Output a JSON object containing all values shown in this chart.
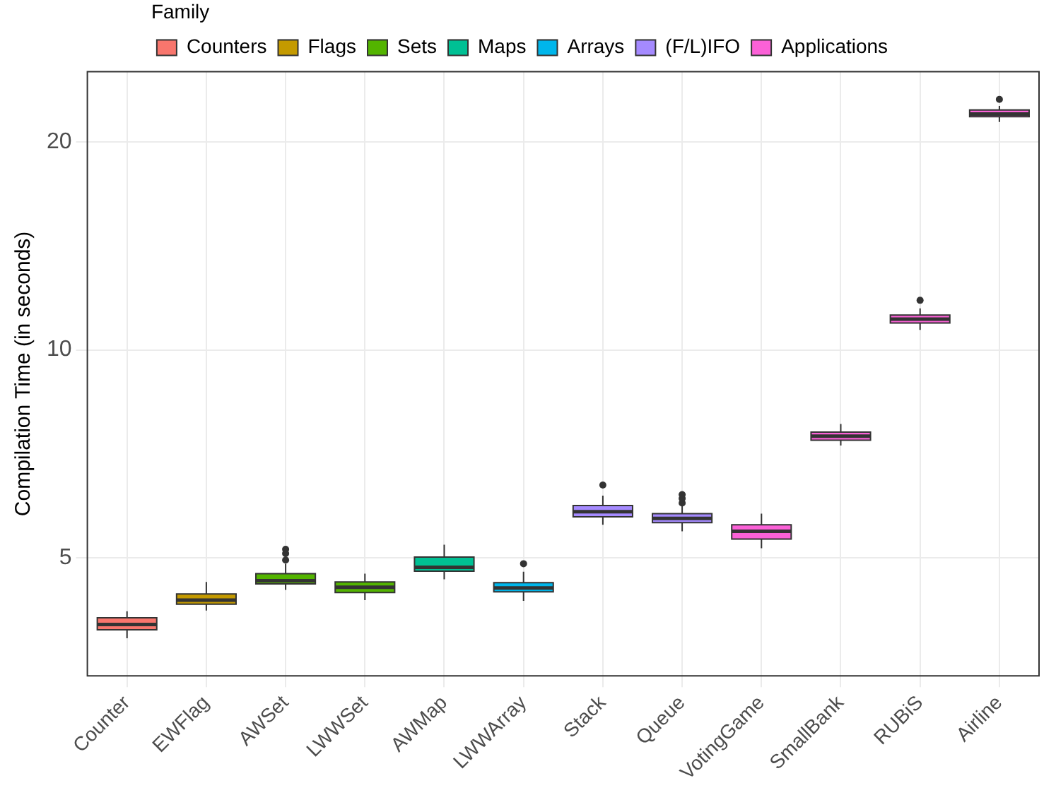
{
  "chart_data": {
    "type": "box",
    "ylabel": "Compilation Time (in seconds)",
    "legend_title": "Family",
    "legend": "top",
    "grid": true,
    "log": "y",
    "categories": [
      "Counter",
      "EWFlag",
      "AWSet",
      "LWWSet",
      "AWMap",
      "LWWArray",
      "Stack",
      "Queue",
      "VotingGame",
      "SmallBank",
      "RUBiS",
      "Airline"
    ],
    "ylim": [
      3.37,
      25.3
    ],
    "yticks": [
      5,
      10,
      20
    ],
    "series": [
      {
        "name": "Counters",
        "color": "#f8766d",
        "boxes": [
          {
            "low": 3.82,
            "q1": 3.93,
            "median": 4.0,
            "q3": 4.09,
            "high": 4.18
          },
          null,
          null,
          null,
          null,
          null,
          null,
          null,
          null,
          null,
          null,
          null
        ]
      },
      {
        "name": "Flags",
        "color": "#c49a00",
        "boxes": [
          null,
          {
            "low": 4.19,
            "q1": 4.28,
            "median": 4.34,
            "q3": 4.43,
            "high": 4.61
          },
          null,
          null,
          null,
          null,
          null,
          null,
          null,
          null,
          null,
          null
        ]
      },
      {
        "name": "Sets",
        "color": "#53b400",
        "boxes": [
          null,
          null,
          {
            "low": 4.49,
            "q1": 4.58,
            "median": 4.63,
            "q3": 4.74,
            "high": 4.9,
            "outliers": [
              4.96,
              5.07,
              5.14
            ]
          },
          {
            "low": 4.34,
            "q1": 4.45,
            "median": 4.53,
            "q3": 4.61,
            "high": 4.74
          },
          null,
          null,
          null,
          null,
          null,
          null,
          null,
          null
        ]
      },
      {
        "name": "Maps",
        "color": "#00c094",
        "boxes": [
          null,
          null,
          null,
          null,
          {
            "low": 4.65,
            "q1": 4.78,
            "median": 4.84,
            "q3": 5.01,
            "high": 5.22
          },
          null,
          null,
          null,
          null,
          null,
          null,
          null
        ]
      },
      {
        "name": "Arrays",
        "color": "#00b6eb",
        "boxes": [
          null,
          null,
          null,
          null,
          null,
          {
            "low": 4.33,
            "q1": 4.46,
            "median": 4.52,
            "q3": 4.6,
            "high": 4.77,
            "outliers": [
              4.9
            ]
          },
          null,
          null,
          null,
          null,
          null,
          null
        ]
      },
      {
        "name": "(F/L)IFO",
        "color": "#a58aff",
        "boxes": [
          null,
          null,
          null,
          null,
          null,
          null,
          {
            "low": 5.58,
            "q1": 5.73,
            "median": 5.83,
            "q3": 5.95,
            "high": 6.15,
            "outliers": [
              6.37
            ]
          },
          {
            "low": 5.46,
            "q1": 5.62,
            "median": 5.7,
            "q3": 5.79,
            "high": 5.97,
            "outliers": [
              6.0,
              6.09,
              6.17
            ]
          },
          null,
          null,
          null,
          null
        ]
      },
      {
        "name": "Applications",
        "color": "#fb61d7",
        "boxes": [
          null,
          null,
          null,
          null,
          null,
          null,
          null,
          null,
          {
            "low": 5.16,
            "q1": 5.32,
            "median": 5.46,
            "q3": 5.58,
            "high": 5.79
          },
          {
            "low": 7.27,
            "q1": 7.4,
            "median": 7.5,
            "q3": 7.6,
            "high": 7.81
          },
          {
            "low": 10.69,
            "q1": 10.94,
            "median": 11.08,
            "q3": 11.23,
            "high": 11.49,
            "outliers": [
              11.8
            ]
          },
          {
            "low": 21.39,
            "q1": 21.78,
            "median": 21.97,
            "q3": 22.27,
            "high": 22.57,
            "outliers": [
              23.07
            ]
          }
        ]
      }
    ]
  }
}
